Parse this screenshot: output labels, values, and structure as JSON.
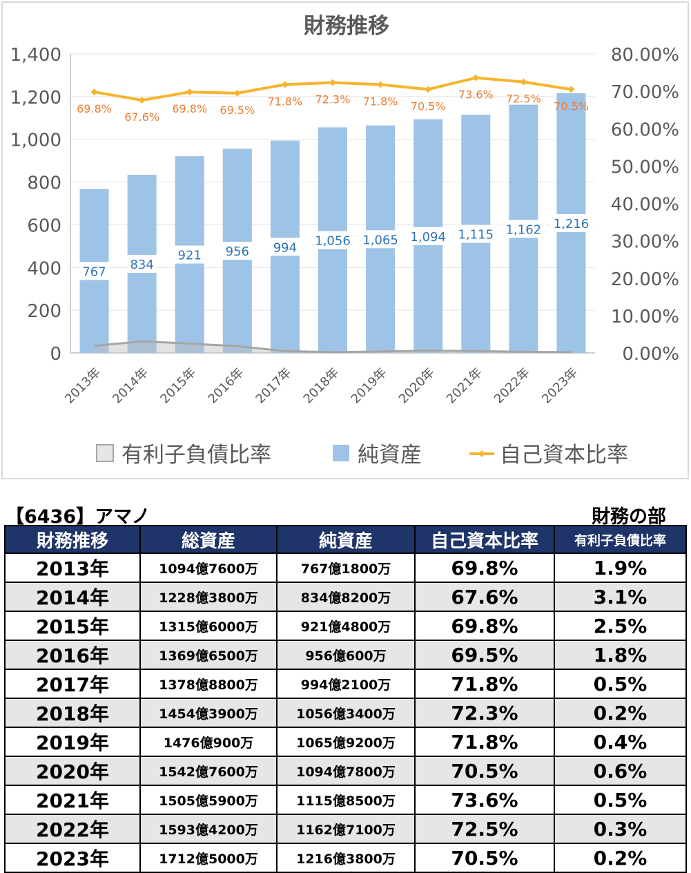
{
  "chart_data": {
    "type": "bar",
    "title": "財務推移",
    "categories": [
      "2013年",
      "2014年",
      "2015年",
      "2016年",
      "2017年",
      "2018年",
      "2019年",
      "2020年",
      "2021年",
      "2022年",
      "2023年"
    ],
    "series": [
      {
        "name": "純資産",
        "type": "bar",
        "axis": "left",
        "values": [
          767,
          834,
          921,
          956,
          994,
          1056,
          1065,
          1094,
          1115,
          1162,
          1216
        ],
        "labels": [
          "767",
          "834",
          "921",
          "956",
          "994",
          "1,056",
          "1,065",
          "1,094",
          "1,115",
          "1,162",
          "1,216"
        ],
        "color": "#9dc3e6"
      },
      {
        "name": "自己資本比率",
        "type": "line",
        "axis": "right",
        "values": [
          69.8,
          67.6,
          69.8,
          69.5,
          71.8,
          72.3,
          71.8,
          70.5,
          73.6,
          72.5,
          70.5
        ],
        "labels": [
          "69.8%",
          "67.6%",
          "69.8%",
          "69.5%",
          "71.8%",
          "72.3%",
          "71.8%",
          "70.5%",
          "73.6%",
          "72.5%",
          "70.5%"
        ],
        "color": "#f5b52e",
        "label_color": "#ed7d31"
      },
      {
        "name": "有利子負債比率",
        "type": "area",
        "axis": "right",
        "values": [
          1.9,
          3.1,
          2.5,
          1.8,
          0.5,
          0.2,
          0.4,
          0.6,
          0.5,
          0.3,
          0.2
        ],
        "color": "#bfbfbf",
        "line_color": "#a6a6a6"
      }
    ],
    "y_left": {
      "min": 0,
      "max": 1400,
      "ticks": [
        "0",
        "200",
        "400",
        "600",
        "800",
        "1,000",
        "1,200",
        "1,400"
      ]
    },
    "y_right": {
      "min": 0,
      "max": 80,
      "ticks": [
        "0.00%",
        "10.00%",
        "20.00%",
        "30.00%",
        "40.00%",
        "50.00%",
        "60.00%",
        "70.00%",
        "80.00%"
      ]
    },
    "legend": {
      "position": "bottom"
    },
    "grid": true
  },
  "table": {
    "code_title": "【6436】アマノ",
    "section_title": "財務の部",
    "headers": [
      "財務推移",
      "総資産",
      "純資産",
      "自己資本比率",
      "有利子負債比率"
    ],
    "rows": [
      [
        "2013年",
        "1094億7600万",
        "767億1800万",
        "69.8%",
        "1.9%"
      ],
      [
        "2014年",
        "1228億3800万",
        "834億8200万",
        "67.6%",
        "3.1%"
      ],
      [
        "2015年",
        "1315億6000万",
        "921億4800万",
        "69.8%",
        "2.5%"
      ],
      [
        "2016年",
        "1369億6500万",
        "956億600万",
        "69.5%",
        "1.8%"
      ],
      [
        "2017年",
        "1378億8800万",
        "994億2100万",
        "71.8%",
        "0.5%"
      ],
      [
        "2018年",
        "1454億3900万",
        "1056億3400万",
        "72.3%",
        "0.2%"
      ],
      [
        "2019年",
        "1476億900万",
        "1065億9200万",
        "71.8%",
        "0.4%"
      ],
      [
        "2020年",
        "1542億7600万",
        "1094億7800万",
        "70.5%",
        "0.6%"
      ],
      [
        "2021年",
        "1505億5900万",
        "1115億8500万",
        "73.6%",
        "0.5%"
      ],
      [
        "2022年",
        "1593億4200万",
        "1162億7100万",
        "72.5%",
        "0.3%"
      ],
      [
        "2023年",
        "1712億5000万",
        "1216億3800万",
        "70.5%",
        "0.2%"
      ]
    ]
  }
}
